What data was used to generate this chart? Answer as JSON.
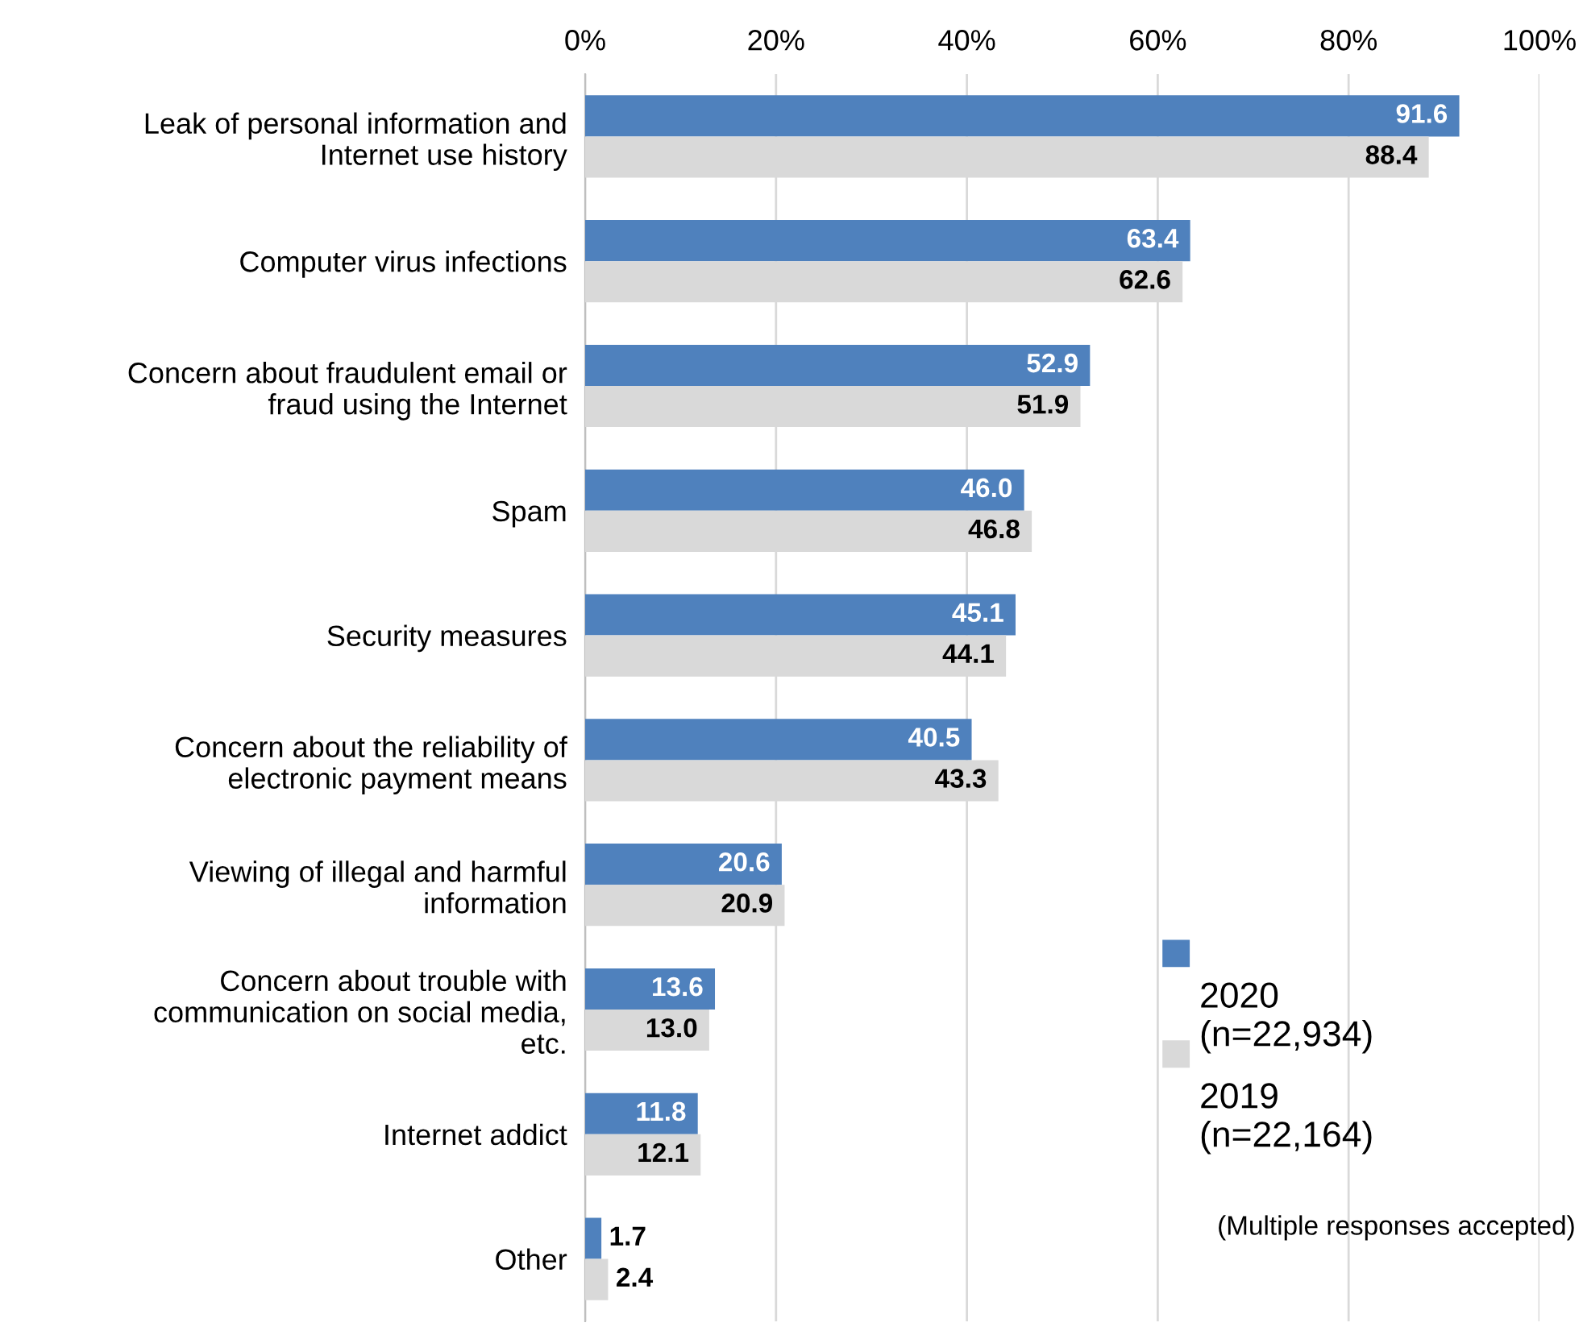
{
  "chart_data": {
    "type": "bar",
    "orientation": "horizontal",
    "categories": [
      "Leak of personal information and\nInternet use history",
      "Computer virus infections",
      "Concern about fraudulent email or\nfraud using the Internet",
      "Spam",
      "Security measures",
      "Concern about the reliability of\nelectronic payment means",
      "Viewing of illegal and harmful\ninformation",
      "Concern about trouble with\ncommunication on social media,\netc.",
      "Internet addict",
      "Other"
    ],
    "series": [
      {
        "name": "2020\n(n=22,934)",
        "color": "#4f81bd",
        "values": [
          91.6,
          63.4,
          52.9,
          46.0,
          45.1,
          40.5,
          20.6,
          13.6,
          11.8,
          1.7
        ],
        "value_labels": [
          "91.6",
          "63.4",
          "52.9",
          "46.0",
          "45.1",
          "40.5",
          "20.6",
          "13.6",
          "11.8",
          "1.7"
        ]
      },
      {
        "name": "2019\n(n=22,164)",
        "color": "#d9d9d9",
        "values": [
          88.4,
          62.6,
          51.9,
          46.8,
          44.1,
          43.3,
          20.9,
          13.0,
          12.1,
          2.4
        ],
        "value_labels": [
          "88.4",
          "62.6",
          "51.9",
          "46.8",
          "44.1",
          "43.3",
          "20.9",
          "13.0",
          "12.1",
          "2.4"
        ]
      }
    ],
    "xlim": [
      0,
      100
    ],
    "xticks": [
      {
        "value": 0,
        "label": "0%"
      },
      {
        "value": 20,
        "label": "20%"
      },
      {
        "value": 40,
        "label": "40%"
      },
      {
        "value": 60,
        "label": "60%"
      },
      {
        "value": 80,
        "label": "80%"
      },
      {
        "value": 100,
        "label": "100%"
      }
    ],
    "grid": "x",
    "legend": "bottom right",
    "annotations": [
      "(Multiple responses accepted)"
    ]
  }
}
